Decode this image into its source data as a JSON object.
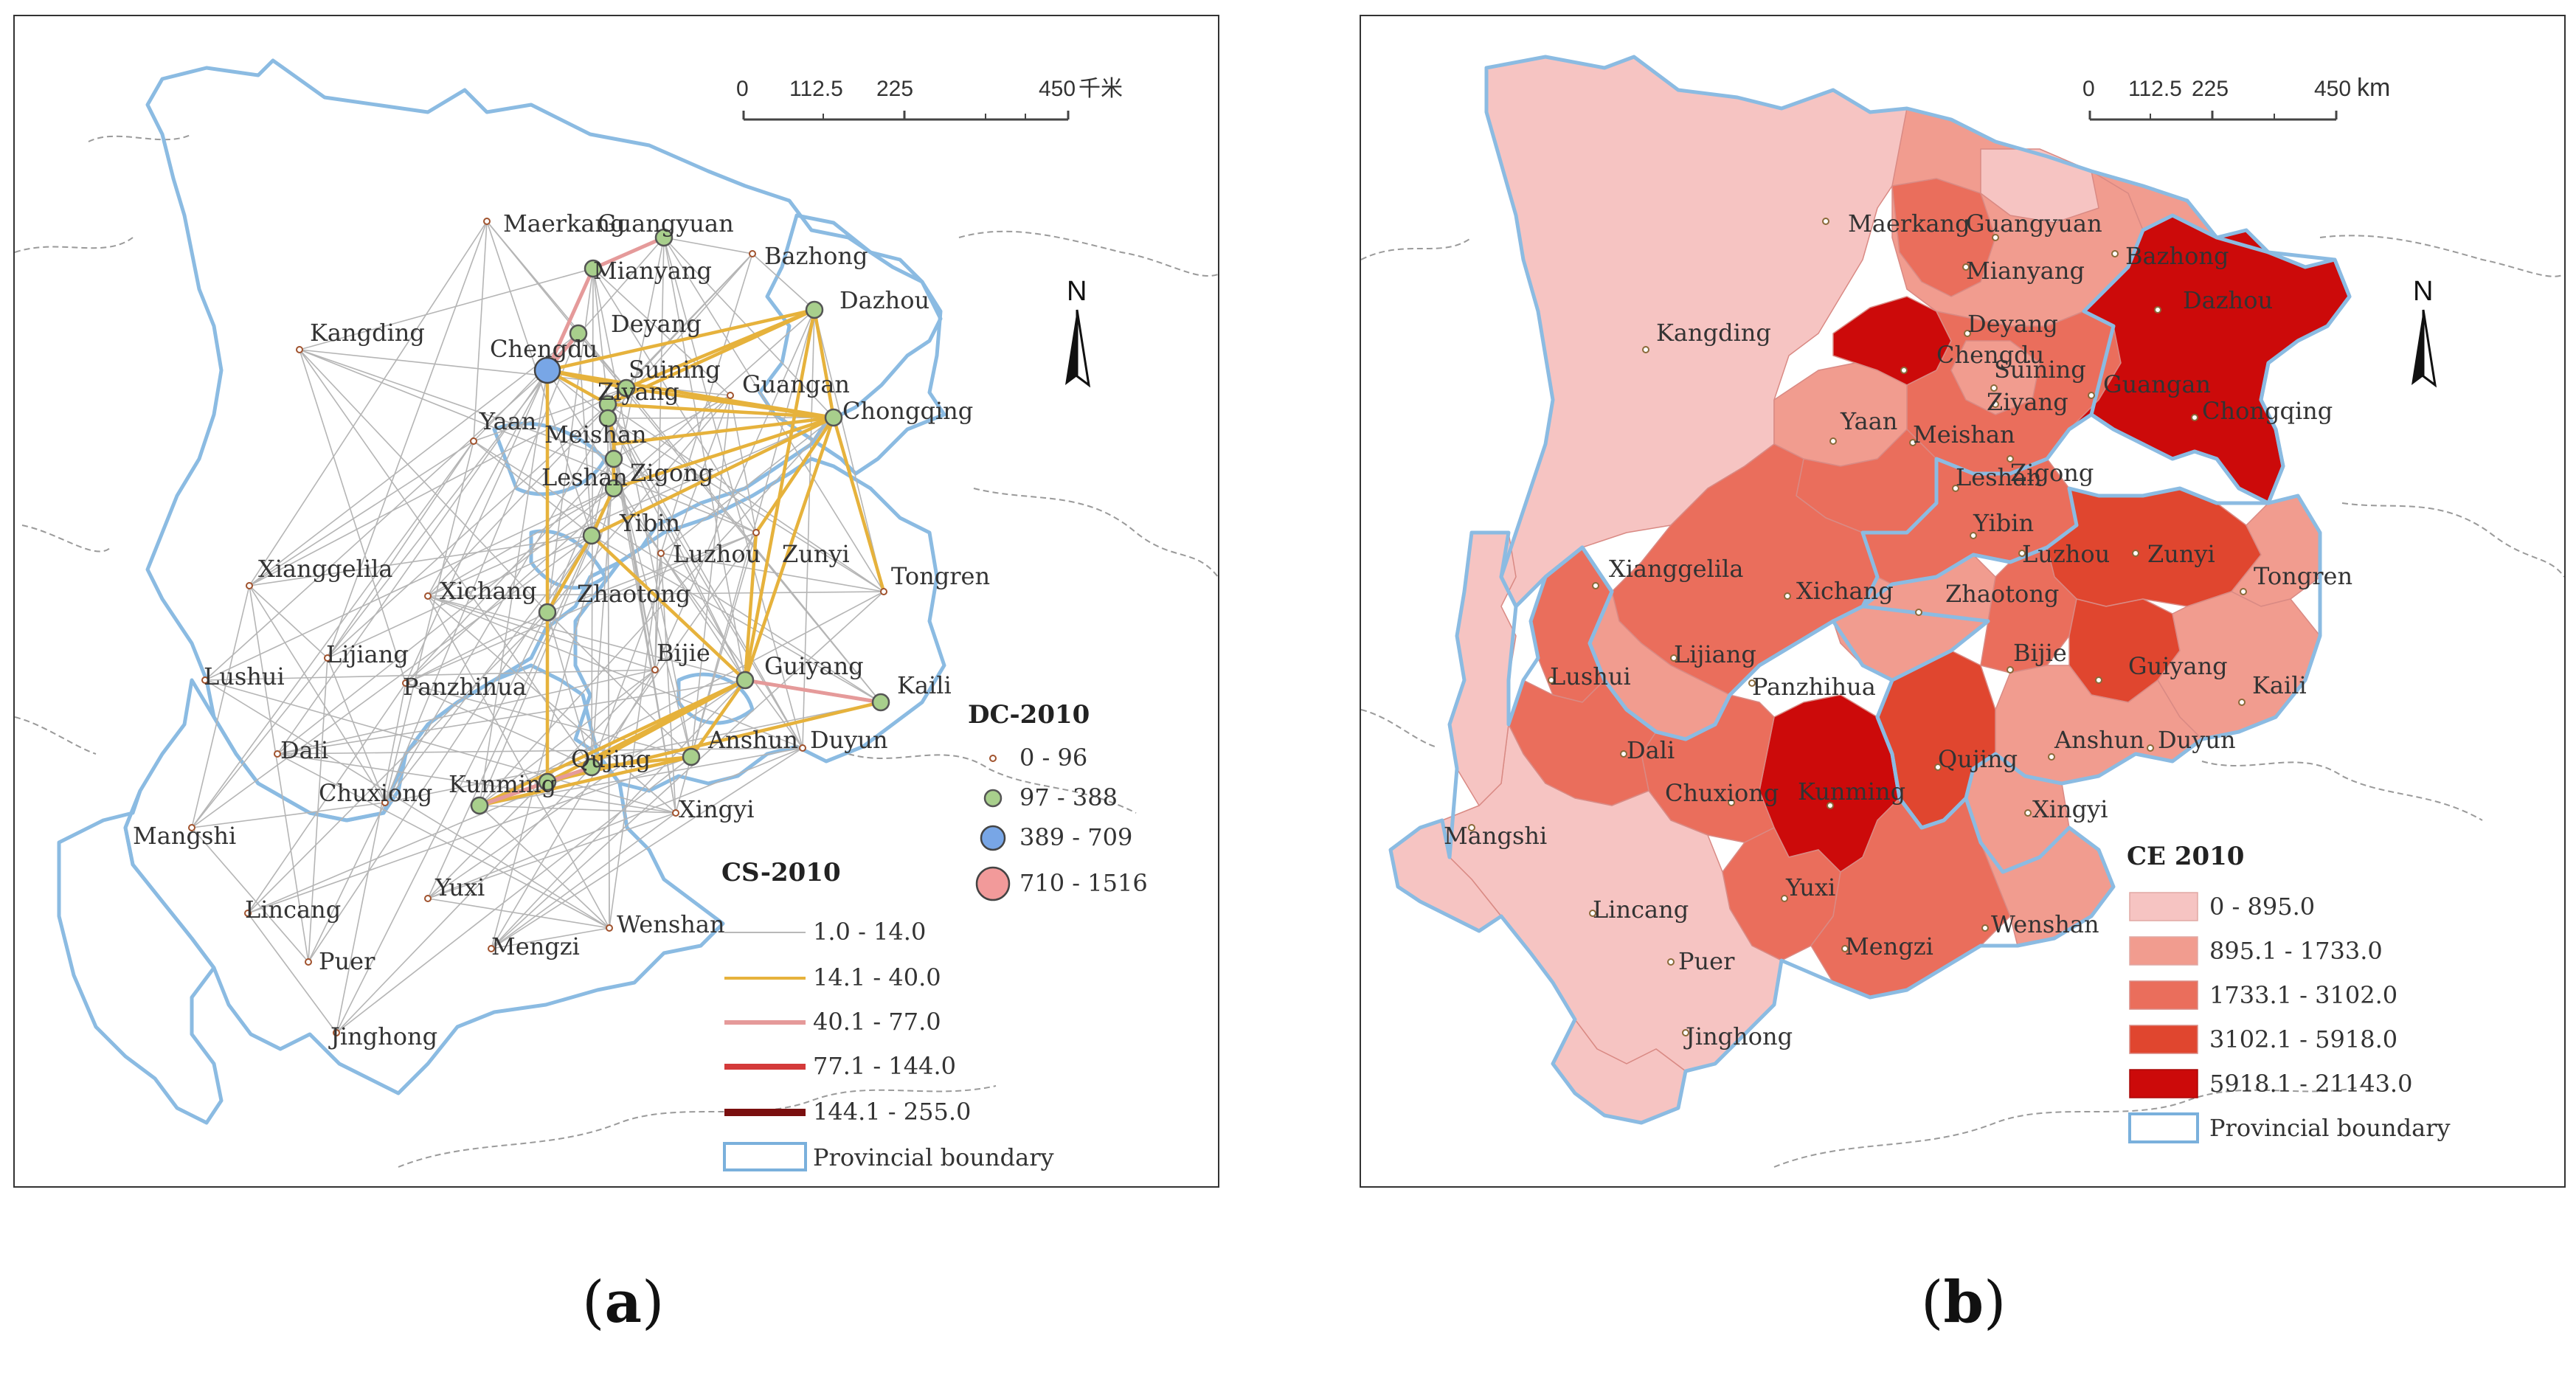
{
  "panel_a": {
    "scale_ticks": [
      "0",
      "112.5",
      "225",
      "450"
    ],
    "scale_unit": "千米",
    "north": "N",
    "cities": [
      "Maerkang",
      "Guangyuan",
      "Mianyang",
      "Bazhong",
      "Deyang",
      "Dazhou",
      "Kangding",
      "Chengdu",
      "Suining",
      "Ziyang",
      "Guangan",
      "Chongqing",
      "Yaan",
      "Meishan",
      "Zigong",
      "Leshan",
      "Yibin",
      "Luzhou",
      "Zunyi",
      "Tongren",
      "Xianggelila",
      "Xichang",
      "Zhaotong",
      "Bijie",
      "Lijiang",
      "Lushui",
      "Panzhihua",
      "Guiyang",
      "Kaili",
      "Dali",
      "Anshun",
      "Duyun",
      "Chuxiong",
      "Kunming",
      "Qujing",
      "Xingyi",
      "Mangshi",
      "Yuxi",
      "Lincang",
      "Wenshan",
      "Puer",
      "Mengzi",
      "Jinghong"
    ],
    "legend_nodes": {
      "title": "DC-2010",
      "classes": [
        {
          "label": "0 - 96",
          "color": "#e8b48a"
        },
        {
          "label": "97 - 388",
          "color": "#a8cf8c"
        },
        {
          "label": "389 - 709",
          "color": "#78a6e6"
        },
        {
          "label": "710 - 1516",
          "color": "#f29a9a"
        }
      ]
    },
    "legend_links": {
      "title": "CS-2010",
      "classes": [
        {
          "label": "1.0 - 14.0",
          "color": "#b8b8b8"
        },
        {
          "label": "14.1 - 40.0",
          "color": "#e6b23c"
        },
        {
          "label": "40.1 - 77.0",
          "color": "#e59a9a"
        },
        {
          "label": "77.1 - 144.0",
          "color": "#d43a3a"
        },
        {
          "label": "144.1 - 255.0",
          "color": "#7a0f0f"
        }
      ],
      "boundary_label": "Provincial boundary"
    },
    "boundary_color": "#7ab0dc"
  },
  "panel_b": {
    "scale_ticks": [
      "0",
      "112.5",
      "225",
      "450"
    ],
    "scale_unit": "km",
    "north": "N",
    "cities": [
      "Maerkang",
      "Guangyuan",
      "Mianyang",
      "Bazhong",
      "Deyang",
      "Dazhou",
      "Kangding",
      "Chengdu",
      "Suining",
      "Ziyang",
      "Guangan",
      "Chongqing",
      "Yaan",
      "Meishan",
      "Zigong",
      "Leshan",
      "Yibin",
      "Luzhou",
      "Zunyi",
      "Tongren",
      "Xianggelila",
      "Xichang",
      "Zhaotong",
      "Bijie",
      "Lijiang",
      "Lushui",
      "Panzhihua",
      "Guiyang",
      "Kaili",
      "Dali",
      "Anshun",
      "Duyun",
      "Chuxiong",
      "Kunming",
      "Qujing",
      "Xingyi",
      "Mangshi",
      "Yuxi",
      "Lincang",
      "Wenshan",
      "Puer",
      "Mengzi",
      "Jinghong"
    ],
    "legend": {
      "title": "CE 2010",
      "classes": [
        {
          "label": "0 - 895.0",
          "color": "#f6c4c2"
        },
        {
          "label": "895.1 - 1733.0",
          "color": "#f19c8f"
        },
        {
          "label": "1733.1 - 3102.0",
          "color": "#ea6e5c"
        },
        {
          "label": "3102.1 - 5918.0",
          "color": "#e0462f"
        },
        {
          "label": "5918.1 - 21143.0",
          "color": "#cc0a0a"
        }
      ],
      "boundary_label": "Provincial boundary"
    }
  },
  "captions": {
    "a": "a",
    "b": "b"
  }
}
